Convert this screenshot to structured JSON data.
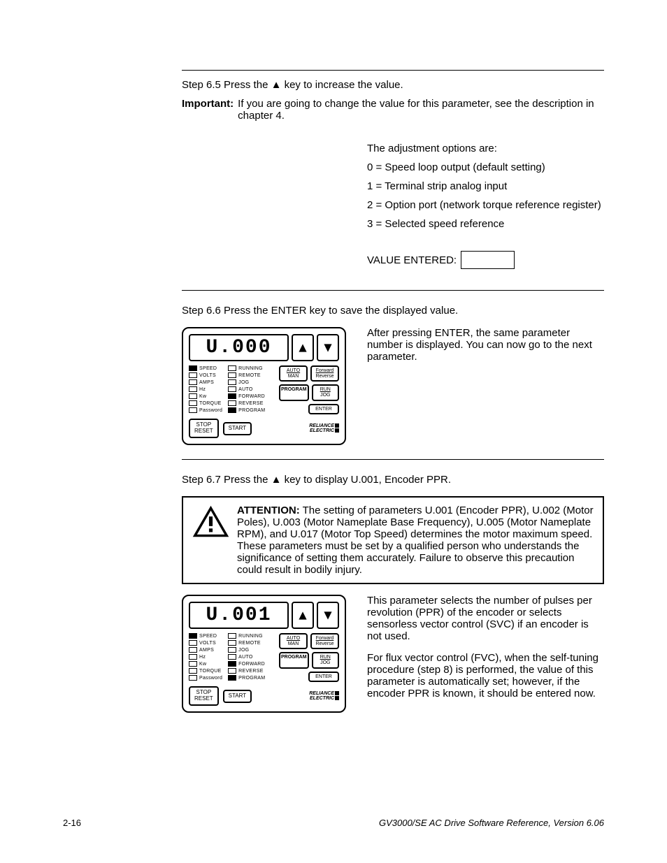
{
  "step65": "Step 6.5 Press the ▲ key to increase the value.",
  "important_label": "Important:",
  "important_text": "If you are going to change the value for this parameter, see the description in chapter 4.",
  "options_intro": "The adjustment options are:",
  "opt0": "0 = Speed loop output (default setting)",
  "opt1": "1 = Terminal strip analog input",
  "opt2": "2 = Option port (network torque reference register)",
  "opt3": "3 = Selected speed reference",
  "value_entered_label": "VALUE ENTERED:",
  "step66": "Step 6.6 Press the ENTER key to save the displayed value.",
  "step66_side": "After pressing ENTER, the same parameter number is displayed. You can now go to the next parameter.",
  "step67": "Step 6.7 Press the ▲ key to display U.001, Encoder PPR.",
  "attention_label": "ATTENTION:",
  "attention_text": "The setting of parameters U.001 (Encoder PPR), U.002 (Motor Poles), U.003 (Motor Nameplate Base Frequency), U.005 (Motor Nameplate RPM), and U.017 (Motor Top Speed) determines the motor maximum speed. These parameters must be set by a qualified person who understands the significance of setting them accurately. Failure to observe this precaution could result in bodily injury.",
  "step67_side1": "This parameter selects the number of pulses per revolution (PPR) of the encoder or selects sensorless vector control (SVC) if an encoder is not used.",
  "step67_side2": "For flux vector control (FVC), when the self-tuning procedure (step 8) is performed, the value of this parameter is automatically set; however, if the encoder PPR is known, it should be entered now.",
  "footer_left": "2-16",
  "footer_right": "GV3000/SE AC Drive Software Reference, Version 6.06",
  "panel": {
    "display1": "U.000",
    "display2": "U.001",
    "leds_left": [
      {
        "label": "SPEED",
        "on": true
      },
      {
        "label": "VOLTS",
        "on": false
      },
      {
        "label": "AMPS",
        "on": false
      },
      {
        "label": "Hz",
        "on": false
      },
      {
        "label": "Kw",
        "on": false
      },
      {
        "label": "TORQUE",
        "on": false
      },
      {
        "label": "Password",
        "on": false
      }
    ],
    "leds_right": [
      {
        "label": "RUNNING",
        "on": false
      },
      {
        "label": "REMOTE",
        "on": false
      },
      {
        "label": "JOG",
        "on": false
      },
      {
        "label": "AUTO",
        "on": false
      },
      {
        "label": "FORWARD",
        "on": true
      },
      {
        "label": "REVERSE",
        "on": false
      },
      {
        "label": "PROGRAM",
        "on": true
      }
    ],
    "btn_auto_top": "AUTO",
    "btn_auto_bot": "MAN",
    "btn_fwd_top": "Forward",
    "btn_fwd_bot": "Reverse",
    "btn_program": "PROGRAM",
    "btn_run_top": "RUN",
    "btn_run_bot": "JOG",
    "btn_enter": "ENTER",
    "btn_stop_top": "STOP",
    "btn_stop_bot": "RESET",
    "btn_start": "START",
    "brand_top": "RELIANCE",
    "brand_bot": "ELECTRIC"
  }
}
